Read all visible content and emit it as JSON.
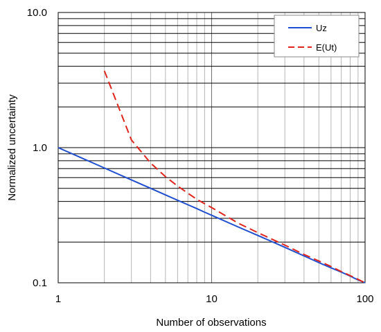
{
  "chart_data": {
    "type": "line",
    "title": "",
    "xlabel": "Number of observations",
    "ylabel": "Normalized uncertainty",
    "xscale": "log",
    "yscale": "log",
    "xlim": [
      1,
      100
    ],
    "ylim": [
      0.1,
      10
    ],
    "x_ticks": [
      "1",
      "10",
      "100"
    ],
    "y_ticks": [
      "0.1",
      "1.0",
      "10.0"
    ],
    "grid": true,
    "legend_position": "top-right",
    "series": [
      {
        "name": "Uz",
        "color": "#1f4fd0",
        "dash": "solid",
        "x": [
          1,
          2,
          3,
          4,
          5,
          6,
          7,
          8,
          9,
          10,
          15,
          20,
          30,
          40,
          50,
          60,
          70,
          80,
          90,
          100
        ],
        "y": [
          1.0,
          0.707,
          0.577,
          0.5,
          0.447,
          0.408,
          0.378,
          0.354,
          0.333,
          0.316,
          0.258,
          0.224,
          0.183,
          0.158,
          0.141,
          0.129,
          0.12,
          0.112,
          0.105,
          0.1
        ]
      },
      {
        "name": "E(Ut)",
        "color": "#e0241b",
        "dash": "dashed",
        "x": [
          2,
          3,
          4,
          5,
          6,
          7,
          8,
          9,
          10,
          15,
          20,
          30,
          40,
          50,
          60,
          70,
          80,
          90,
          100
        ],
        "y": [
          3.7,
          1.14,
          0.77,
          0.61,
          0.52,
          0.46,
          0.415,
          0.385,
          0.36,
          0.275,
          0.235,
          0.19,
          0.162,
          0.145,
          0.132,
          0.121,
          0.113,
          0.106,
          0.1
        ]
      }
    ]
  }
}
